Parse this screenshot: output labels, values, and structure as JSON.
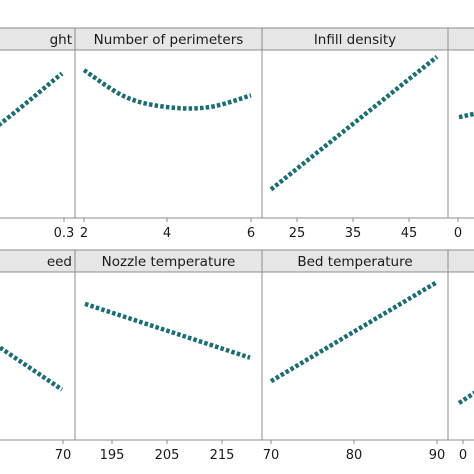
{
  "chart_data": {
    "type": "line",
    "grid": false,
    "line_color": "#1a6e73",
    "panels": [
      {
        "title": "Layer height",
        "shown_title": "ght",
        "xticks": [
          "0.3"
        ],
        "x": [
          0.1,
          0.2,
          0.3
        ],
        "y": [
          0.2,
          0.42,
          0.86
        ]
      },
      {
        "title": "Number of perimeters",
        "xticks": [
          "2",
          "4",
          "6"
        ],
        "x": [
          2,
          3,
          4,
          5,
          6
        ],
        "y": [
          0.88,
          0.72,
          0.66,
          0.66,
          0.73
        ]
      },
      {
        "title": "Infill density",
        "xticks": [
          "25",
          "35",
          "45"
        ],
        "x": [
          20,
          50
        ],
        "y": [
          0.17,
          0.96
        ]
      },
      {
        "title": "",
        "xticks": [
          "0"
        ],
        "x": [
          0,
          10
        ],
        "y": [
          0.6,
          0.68
        ]
      },
      {
        "title": "Print speed",
        "shown_title": "eed",
        "xticks": [
          "70"
        ],
        "x": [
          50,
          70
        ],
        "y": [
          0.55,
          0.3
        ]
      },
      {
        "title": "Nozzle temperature",
        "xticks": [
          "195",
          "205",
          "215"
        ],
        "x": [
          190,
          220
        ],
        "y": [
          0.81,
          0.49
        ]
      },
      {
        "title": "Bed temperature",
        "xticks": [
          "70",
          "80",
          "90"
        ],
        "x": [
          70,
          90
        ],
        "y": [
          0.35,
          0.94
        ]
      },
      {
        "title": "",
        "xticks": [
          "0"
        ],
        "x": [
          0,
          10
        ],
        "y": [
          0.22,
          0.46
        ]
      }
    ]
  }
}
